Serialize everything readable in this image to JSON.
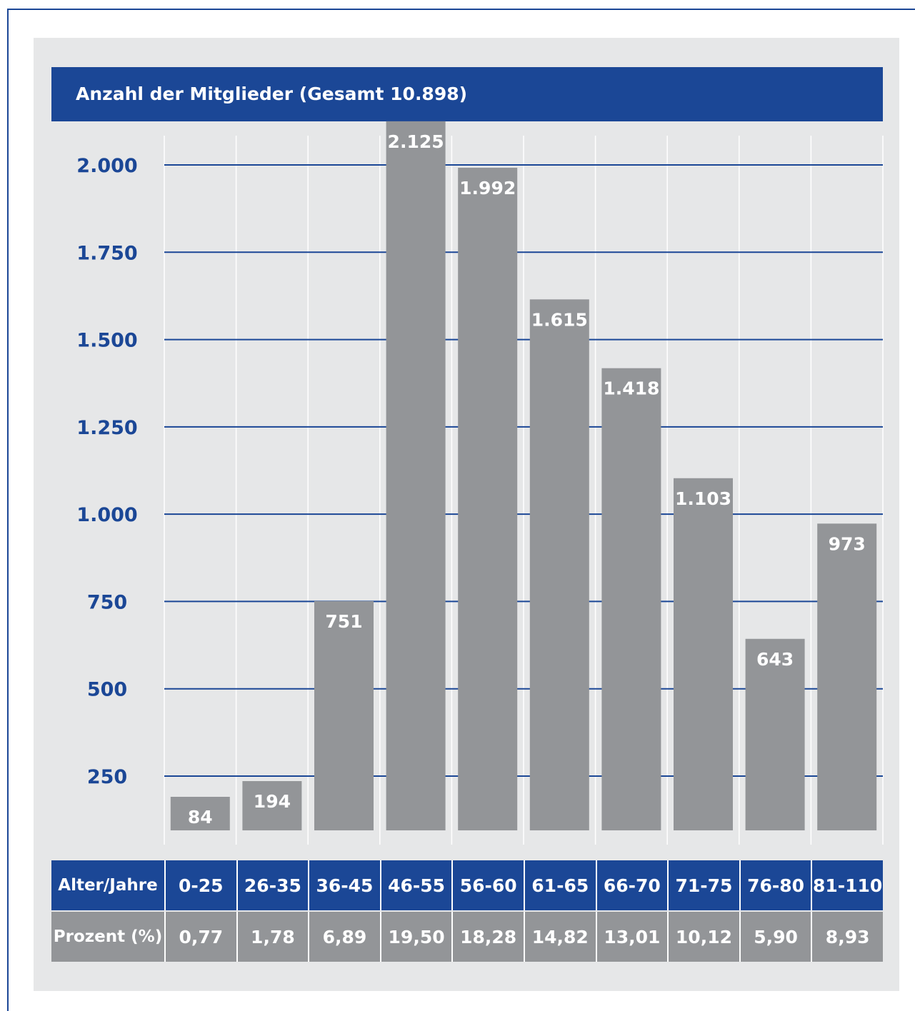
{
  "colors": {
    "brand_blue": "#1b4796",
    "bar_gray": "#939598",
    "panel_bg": "#e6e7e8",
    "text_white": "#ffffff"
  },
  "chart_data": {
    "type": "bar",
    "title": "Anzahl der Mitglieder (Gesamt 10.898)",
    "categories": [
      "0-25",
      "26-35",
      "36-45",
      "46-55",
      "56-60",
      "61-65",
      "66-70",
      "71-75",
      "76-80",
      "81-110"
    ],
    "values": [
      84,
      194,
      751,
      2125,
      1992,
      1615,
      1418,
      1103,
      643,
      973
    ],
    "value_labels": [
      "84",
      "194",
      "751",
      "2.125",
      "1.992",
      "1.615",
      "1.418",
      "1.103",
      "643",
      "973"
    ],
    "ytick_values": [
      250,
      500,
      750,
      1000,
      1250,
      1500,
      1750,
      2000
    ],
    "ytick_labels": [
      "250",
      "500",
      "750",
      "1.000",
      "1.250",
      "1.500",
      "1.750",
      "2.000"
    ],
    "ylim": [
      0,
      2000
    ],
    "grid": true,
    "legend": "none"
  },
  "table": {
    "row1_header": "Alter/Jahre",
    "row2_header": "Prozent (%)",
    "ages": [
      "0-25",
      "26-35",
      "36-45",
      "46-55",
      "56-60",
      "61-65",
      "66-70",
      "71-75",
      "76-80",
      "81-110"
    ],
    "percents": [
      "0,77",
      "1,78",
      "6,89",
      "19,50",
      "18,28",
      "14,82",
      "13,01",
      "10,12",
      "5,90",
      "8,93"
    ]
  }
}
